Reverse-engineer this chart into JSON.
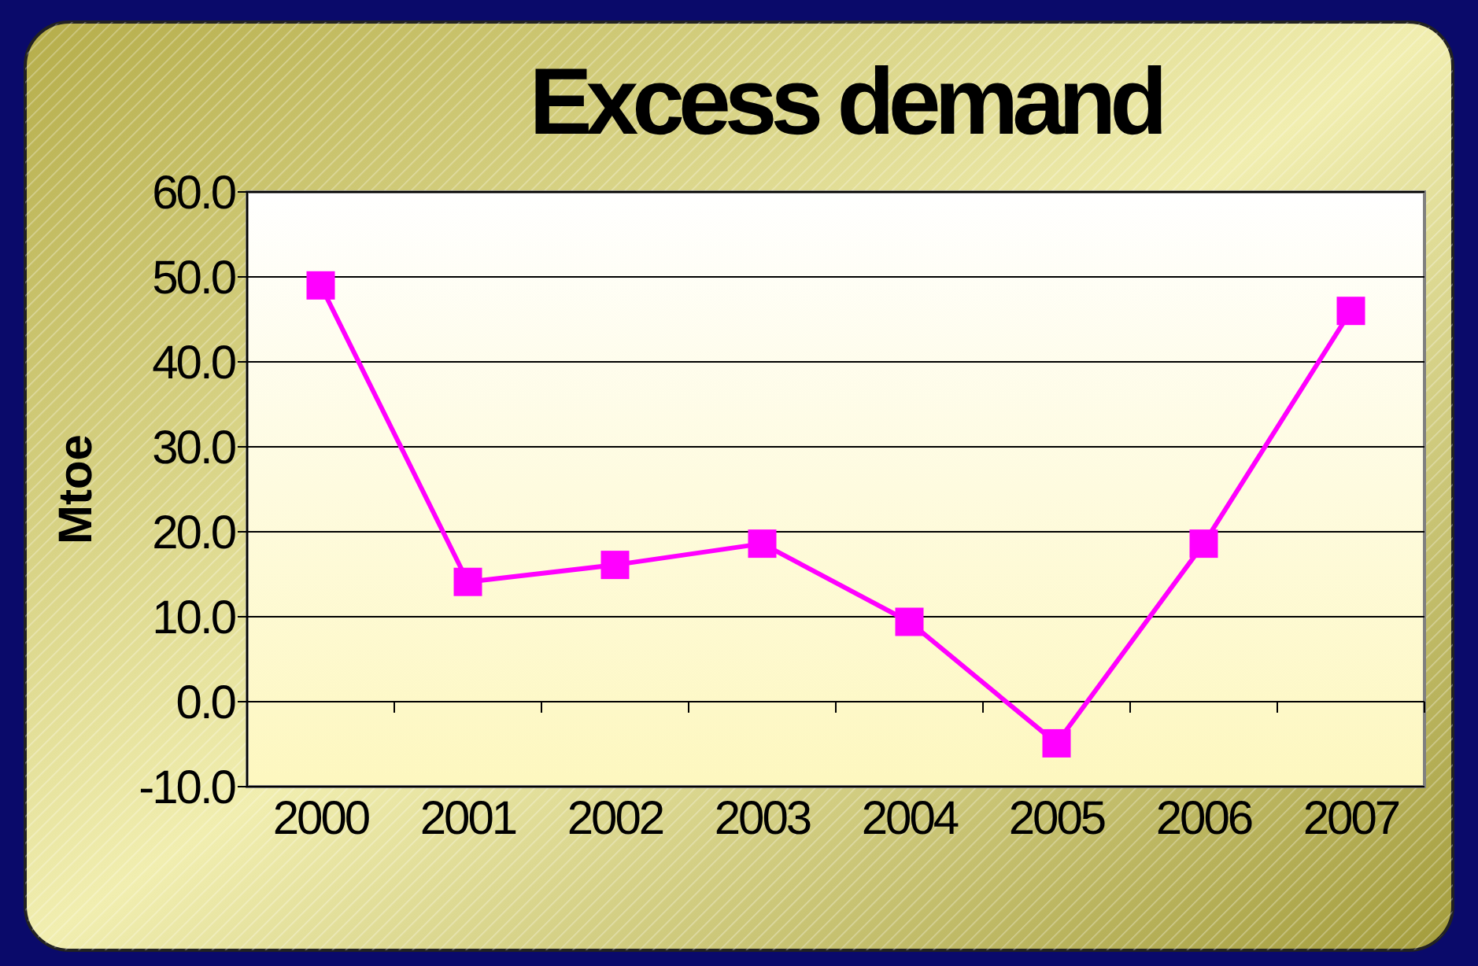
{
  "chart_data": {
    "type": "line",
    "title": "Excess demand",
    "ylabel": "Mtoe",
    "categories": [
      "2000",
      "2001",
      "2002",
      "2003",
      "2004",
      "2005",
      "2006",
      "2007"
    ],
    "series": [
      {
        "color": "#ff00ff",
        "values": [
          49.0,
          14.1,
          16.1,
          18.6,
          9.4,
          -4.9,
          18.6,
          46.0
        ]
      }
    ],
    "ylim": [
      -10,
      60
    ],
    "yticks": [
      {
        "value": -10,
        "label": "-10.0"
      },
      {
        "value": 0,
        "label": "0.0"
      },
      {
        "value": 10,
        "label": "10.0"
      },
      {
        "value": 20,
        "label": "20.0"
      },
      {
        "value": 30,
        "label": "30.0"
      },
      {
        "value": 40,
        "label": "40.0"
      },
      {
        "value": 50,
        "label": "50.0"
      },
      {
        "value": 60,
        "label": "60.0"
      }
    ],
    "grid": "y",
    "marker": "square",
    "line_style": "solid"
  }
}
